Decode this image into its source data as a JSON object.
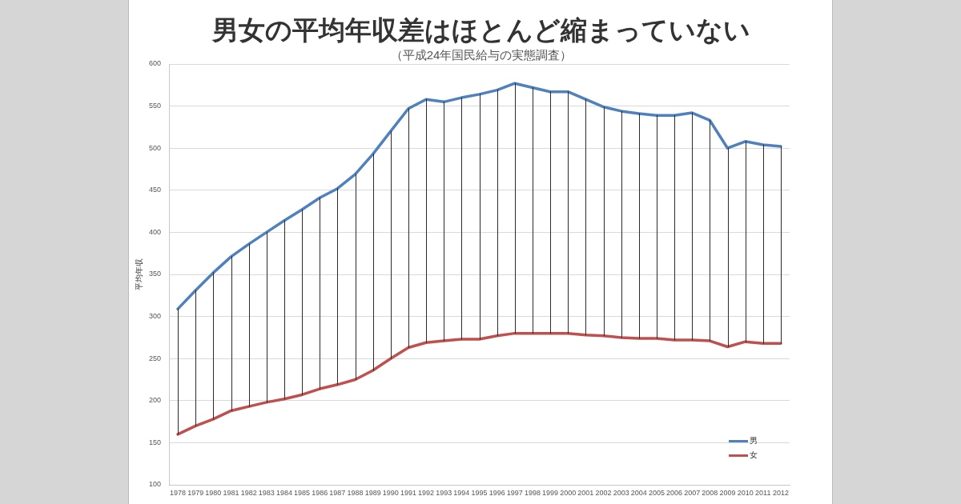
{
  "chart_data": {
    "type": "line",
    "title": "男女の平均年収差はほとんど縮まっていない",
    "subtitle": "（平成24年国民給与の実態調査）",
    "ylabel": "平均年収",
    "categories": [
      "1978",
      "1979",
      "1980",
      "1981",
      "1982",
      "1983",
      "1984",
      "1985",
      "1986",
      "1987",
      "1988",
      "1989",
      "1990",
      "1991",
      "1992",
      "1993",
      "1994",
      "1995",
      "1996",
      "1997",
      "1998",
      "1999",
      "2000",
      "2001",
      "2002",
      "2003",
      "2004",
      "2005",
      "2006",
      "2007",
      "2008",
      "2009",
      "2010",
      "2011",
      "2012"
    ],
    "series": [
      {
        "name": "男",
        "color": "#4f81bd",
        "values": [
          309,
          331,
          352,
          371,
          386,
          400,
          414,
          427,
          441,
          452,
          469,
          493,
          520,
          547,
          558,
          555,
          560,
          564,
          569,
          577,
          572,
          567,
          567,
          558,
          549,
          544,
          541,
          539,
          539,
          542,
          533,
          500,
          508,
          504,
          502
        ],
        "errors": [
          [
            160,
            309
          ],
          [
            170,
            331
          ],
          [
            178,
            352
          ],
          [
            188,
            371
          ],
          [
            193,
            386
          ],
          [
            198,
            400
          ],
          [
            202,
            414
          ],
          [
            207,
            427
          ],
          [
            214,
            441
          ],
          [
            219,
            452
          ],
          [
            225,
            469
          ],
          [
            236,
            493
          ],
          [
            250,
            520
          ],
          [
            263,
            547
          ],
          [
            269,
            558
          ],
          [
            271,
            555
          ],
          [
            273,
            560
          ],
          [
            273,
            564
          ],
          [
            277,
            569
          ],
          [
            280,
            577
          ],
          [
            280,
            572
          ],
          [
            280,
            567
          ],
          [
            280,
            567
          ],
          [
            278,
            558
          ],
          [
            277,
            549
          ],
          [
            275,
            544
          ],
          [
            274,
            541
          ],
          [
            274,
            539
          ],
          [
            272,
            539
          ],
          [
            272,
            542
          ],
          [
            271,
            533
          ],
          [
            264,
            500
          ],
          [
            270,
            508
          ],
          [
            268,
            504
          ],
          [
            268,
            502
          ]
        ]
      },
      {
        "name": "女",
        "color": "#c0504d",
        "values": [
          160,
          170,
          178,
          188,
          193,
          198,
          202,
          207,
          214,
          219,
          225,
          236,
          250,
          263,
          269,
          271,
          273,
          273,
          277,
          280,
          280,
          280,
          280,
          278,
          277,
          275,
          274,
          274,
          272,
          272,
          271,
          264,
          270,
          268,
          268
        ]
      }
    ],
    "ylim": [
      100,
      600
    ],
    "yticks": [
      100,
      150,
      200,
      250,
      300,
      350,
      400,
      450,
      500,
      550,
      600
    ],
    "grid": "y",
    "legend": "bottom right",
    "marker": "none",
    "line_style": "solid"
  }
}
